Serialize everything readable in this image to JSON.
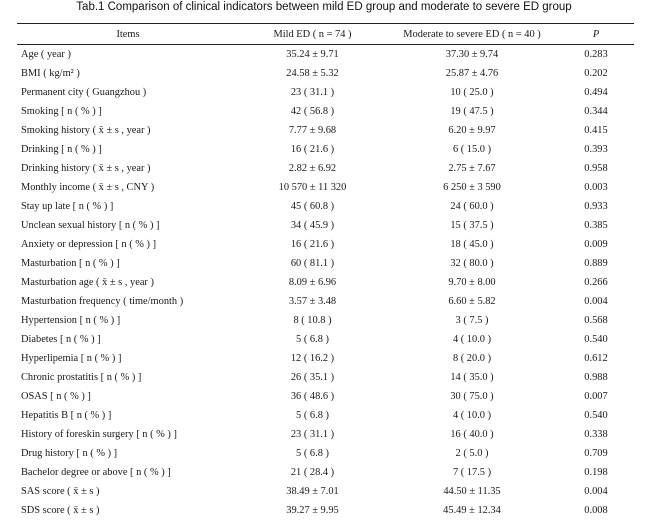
{
  "table": {
    "caption": "Tab.1   Comparison of clinical indicators between mild ED group and  moderate to severe ED group",
    "headers": {
      "items": "Items",
      "mild": "Mild ED ( n = 74 )",
      "moderate": "Moderate to severe ED ( n = 40 )",
      "p": "P"
    },
    "rows": [
      {
        "item": "Age ( year )",
        "mild": "35.24 ± 9.71",
        "moderate": "37.30 ± 9.74",
        "p": "0.283"
      },
      {
        "item": "BMI ( kg/m² )",
        "mild": "24.58 ± 5.32",
        "moderate": "25.87 ± 4.76",
        "p": "0.202"
      },
      {
        "item": "Permanent city ( Guangzhou )",
        "mild": "23 ( 31.1 )",
        "moderate": "10 ( 25.0 )",
        "p": "0.494"
      },
      {
        "item": "Smoking [ n ( % ) ]",
        "mild": "42 ( 56.8 )",
        "moderate": "19 ( 47.5 )",
        "p": "0.344"
      },
      {
        "item": "Smoking history ( x̄ ± s , year )",
        "mild": "7.77 ± 9.68",
        "moderate": "6.20 ± 9.97",
        "p": "0.415"
      },
      {
        "item": "Drinking [ n ( % ) ]",
        "mild": "16 ( 21.6 )",
        "moderate": "6 ( 15.0 )",
        "p": "0.393"
      },
      {
        "item": "Drinking history ( x̄ ± s , year )",
        "mild": "2.82 ± 6.92",
        "moderate": "2.75 ± 7.67",
        "p": "0.958"
      },
      {
        "item": "Monthly income ( x̄ ± s , CNY )",
        "mild": "10 570 ± 11 320",
        "moderate": "6 250 ± 3 590",
        "p": "0.003"
      },
      {
        "item": "Stay up late [ n ( % ) ]",
        "mild": "45 ( 60.8 )",
        "moderate": "24 ( 60.0 )",
        "p": "0.933"
      },
      {
        "item": "Unclean sexual history [ n ( % ) ]",
        "mild": "34 ( 45.9 )",
        "moderate": "15 ( 37.5 )",
        "p": "0.385"
      },
      {
        "item": "Anxiety or depression [ n ( % ) ]",
        "mild": "16 ( 21.6 )",
        "moderate": "18 ( 45.0 )",
        "p": "0.009"
      },
      {
        "item": "Masturbation [ n ( % ) ]",
        "mild": "60 ( 81.1 )",
        "moderate": "32 ( 80.0 )",
        "p": "0.889"
      },
      {
        "item": "Masturbation age ( x̄ ± s , year )",
        "mild": "8.09 ± 6.96",
        "moderate": "9.70 ± 8.00",
        "p": "0.266"
      },
      {
        "item": "Masturbation frequency ( time/month )",
        "mild": "3.57 ± 3.48",
        "moderate": "6.60 ± 5.82",
        "p": "0.004"
      },
      {
        "item": "Hypertension [ n ( % ) ]",
        "mild": "8 ( 10.8 )",
        "moderate": "3 ( 7.5 )",
        "p": "0.568"
      },
      {
        "item": "Diabetes [ n ( % ) ]",
        "mild": "5 ( 6.8 )",
        "moderate": "4 ( 10.0 )",
        "p": "0.540"
      },
      {
        "item": "Hyperlipemia [ n ( % ) ]",
        "mild": "12 ( 16.2 )",
        "moderate": "8 ( 20.0 )",
        "p": "0.612"
      },
      {
        "item": "Chronic prostatitis [ n ( % ) ]",
        "mild": "26 ( 35.1 )",
        "moderate": "14 ( 35.0 )",
        "p": "0.988"
      },
      {
        "item": "OSAS [ n ( % ) ]",
        "mild": "36 ( 48.6 )",
        "moderate": "30 ( 75.0 )",
        "p": "0.007"
      },
      {
        "item": "Hepatitis B [ n ( % ) ]",
        "mild": "5 ( 6.8 )",
        "moderate": "4 ( 10.0 )",
        "p": "0.540"
      },
      {
        "item": "History of foreskin surgery [ n ( % ) ]",
        "mild": "23 ( 31.1 )",
        "moderate": "16 ( 40.0 )",
        "p": "0.338"
      },
      {
        "item": "Drug history [ n ( % ) ]",
        "mild": "5 ( 6.8 )",
        "moderate": "2 ( 5.0 )",
        "p": "0.709"
      },
      {
        "item": "Bachelor degree or above [ n ( % ) ]",
        "mild": "21 ( 28.4 )",
        "moderate": "7 ( 17.5 )",
        "p": "0.198"
      },
      {
        "item": "SAS score ( x̄ ± s )",
        "mild": "38.49 ± 7.01",
        "moderate": "44.50 ± 11.35",
        "p": "0.004"
      },
      {
        "item": "SDS score ( x̄ ± s )",
        "mild": "39.27 ± 9.95",
        "moderate": "45.49 ± 12.34",
        "p": "0.008"
      }
    ]
  }
}
